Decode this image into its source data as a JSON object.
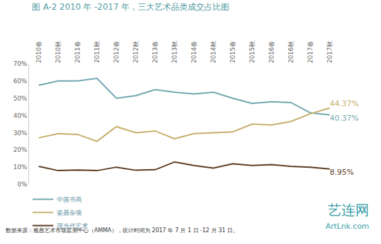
{
  "chart_data": {
    "type": "line",
    "title": "图 A-2 2010 年 -2017 年，三大艺术品类成交占比图",
    "categories": [
      "2010春",
      "2010秋",
      "2011春",
      "2011秋",
      "2012春",
      "2012秋",
      "2013春",
      "2013秋",
      "2014春",
      "2014秋",
      "2015春",
      "2015秋",
      "2016春",
      "2016秋",
      "2017春",
      "2017秋"
    ],
    "series": [
      {
        "name": "中国书画",
        "color": "#6fa7ae",
        "values": [
          57.5,
          60,
          60,
          61.5,
          50,
          51.5,
          55,
          53.5,
          52.5,
          53.5,
          50,
          47,
          48,
          47.5,
          41.5,
          40.37
        ],
        "value_labels": [
          null,
          null,
          null,
          null,
          null,
          null,
          null,
          null,
          null,
          null,
          null,
          null,
          null,
          null,
          null,
          "40.37%"
        ]
      },
      {
        "name": "瓷器杂项",
        "color": "#c6af6b",
        "values": [
          27,
          29.5,
          29,
          25,
          33.5,
          30,
          31,
          26.5,
          29.5,
          30,
          30.5,
          35,
          34.5,
          36.5,
          41,
          44.37
        ],
        "value_labels": [
          null,
          null,
          null,
          null,
          null,
          null,
          null,
          null,
          null,
          null,
          null,
          null,
          null,
          null,
          null,
          "44.37%"
        ]
      },
      {
        "name": "现当代艺术",
        "color": "#5b3b1f",
        "values": [
          10.5,
          8,
          8.3,
          8,
          10,
          8.2,
          8.5,
          13,
          11,
          9.5,
          12,
          11,
          11.5,
          10.5,
          10,
          8.95
        ],
        "value_labels": [
          null,
          null,
          null,
          null,
          null,
          null,
          null,
          null,
          null,
          null,
          null,
          null,
          null,
          null,
          null,
          "8.95%"
        ]
      }
    ],
    "ylim": [
      0,
      70
    ],
    "yticks": [
      {
        "value": 0,
        "label": "0%"
      },
      {
        "value": 10,
        "label": "10%"
      },
      {
        "value": 20,
        "label": "20%"
      },
      {
        "value": 30,
        "label": "30%"
      },
      {
        "value": 40,
        "label": "40%"
      },
      {
        "value": 50,
        "label": "50%"
      },
      {
        "value": 60,
        "label": "60%"
      },
      {
        "value": 70,
        "label": "70%"
      }
    ],
    "grid": false,
    "legend": "bottom-left",
    "data_labels": true,
    "annotations": [
      "数据来源：雅昌艺术市场监测中心（AMMA），统计时间为 2017 年 7 月 1 日 -12 月 31 日。",
      "艺连网",
      "ArtLnk.com"
    ]
  }
}
